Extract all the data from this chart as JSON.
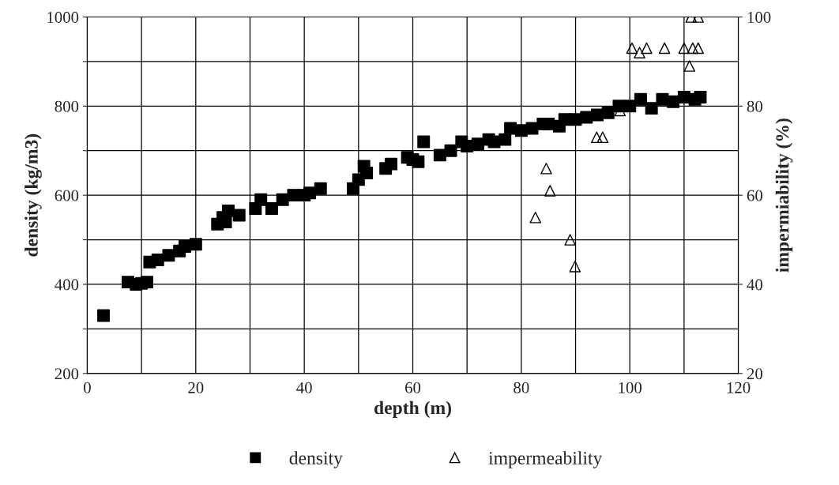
{
  "chart_data": {
    "type": "scatter",
    "xlabel": "depth (m)",
    "ylabel": "density (kg/m3)",
    "y2label": "impermiability (%)",
    "xlim": [
      0,
      120
    ],
    "xticks": [
      0,
      {
        "value": 10,
        "label": null
      },
      20,
      {
        "value": 30,
        "label": null
      },
      40,
      {
        "value": 50,
        "label": null
      },
      60,
      {
        "value": 70,
        "label": null
      },
      80,
      {
        "value": 90,
        "label": null
      },
      100,
      {
        "value": 110,
        "label": null
      },
      120
    ],
    "ylim": [
      200,
      1000
    ],
    "yticks": [
      200,
      {
        "value": 300,
        "label": null
      },
      400,
      {
        "value": 500,
        "label": null
      },
      600,
      {
        "value": 700,
        "label": null
      },
      800,
      {
        "value": 900,
        "label": null
      },
      1000
    ],
    "y2lim": [
      20,
      100
    ],
    "y2ticks": [
      20,
      40,
      60,
      80,
      100
    ],
    "grid": true,
    "legend": "bottom",
    "series": [
      {
        "name": "density",
        "color": "#000000",
        "marker": "square",
        "x": [
          3,
          7.5,
          9,
          10,
          11,
          11.5,
          13,
          15,
          17,
          18,
          20,
          24,
          25,
          25.5,
          26,
          28,
          31,
          32,
          34,
          36,
          38,
          40,
          41,
          43,
          49,
          50,
          51,
          51.5,
          55,
          56,
          59,
          60,
          61,
          62,
          65,
          67,
          69,
          70,
          72,
          74,
          75,
          77,
          78,
          80,
          82,
          84,
          85,
          87,
          88,
          90,
          92,
          94,
          96,
          98,
          100,
          102,
          104,
          106,
          108,
          110,
          112,
          113
        ],
        "values": [
          330,
          405,
          400,
          402,
          405,
          450,
          455,
          465,
          475,
          485,
          490,
          535,
          550,
          540,
          565,
          555,
          570,
          590,
          570,
          590,
          600,
          600,
          605,
          615,
          615,
          635,
          665,
          650,
          660,
          670,
          685,
          680,
          675,
          720,
          690,
          700,
          720,
          710,
          715,
          725,
          720,
          725,
          750,
          745,
          750,
          760,
          760,
          755,
          770,
          770,
          775,
          780,
          785,
          800,
          800,
          815,
          795,
          815,
          810,
          820,
          815,
          820
        ]
      },
      {
        "name": "impermeability",
        "color": "#000000",
        "marker": "triangle",
        "axis": "y2",
        "x": [
          82.6,
          84.6,
          85.3,
          89,
          89.9,
          93.9,
          95,
          98.2,
          100.4,
          101.8,
          103.1,
          106.4,
          110,
          111,
          111.3,
          111.6,
          112.6,
          112.6
        ],
        "values": [
          55,
          66,
          61,
          50,
          44,
          73,
          73,
          79,
          93,
          92,
          93,
          93,
          93,
          89,
          100,
          93,
          93,
          100
        ]
      }
    ]
  }
}
